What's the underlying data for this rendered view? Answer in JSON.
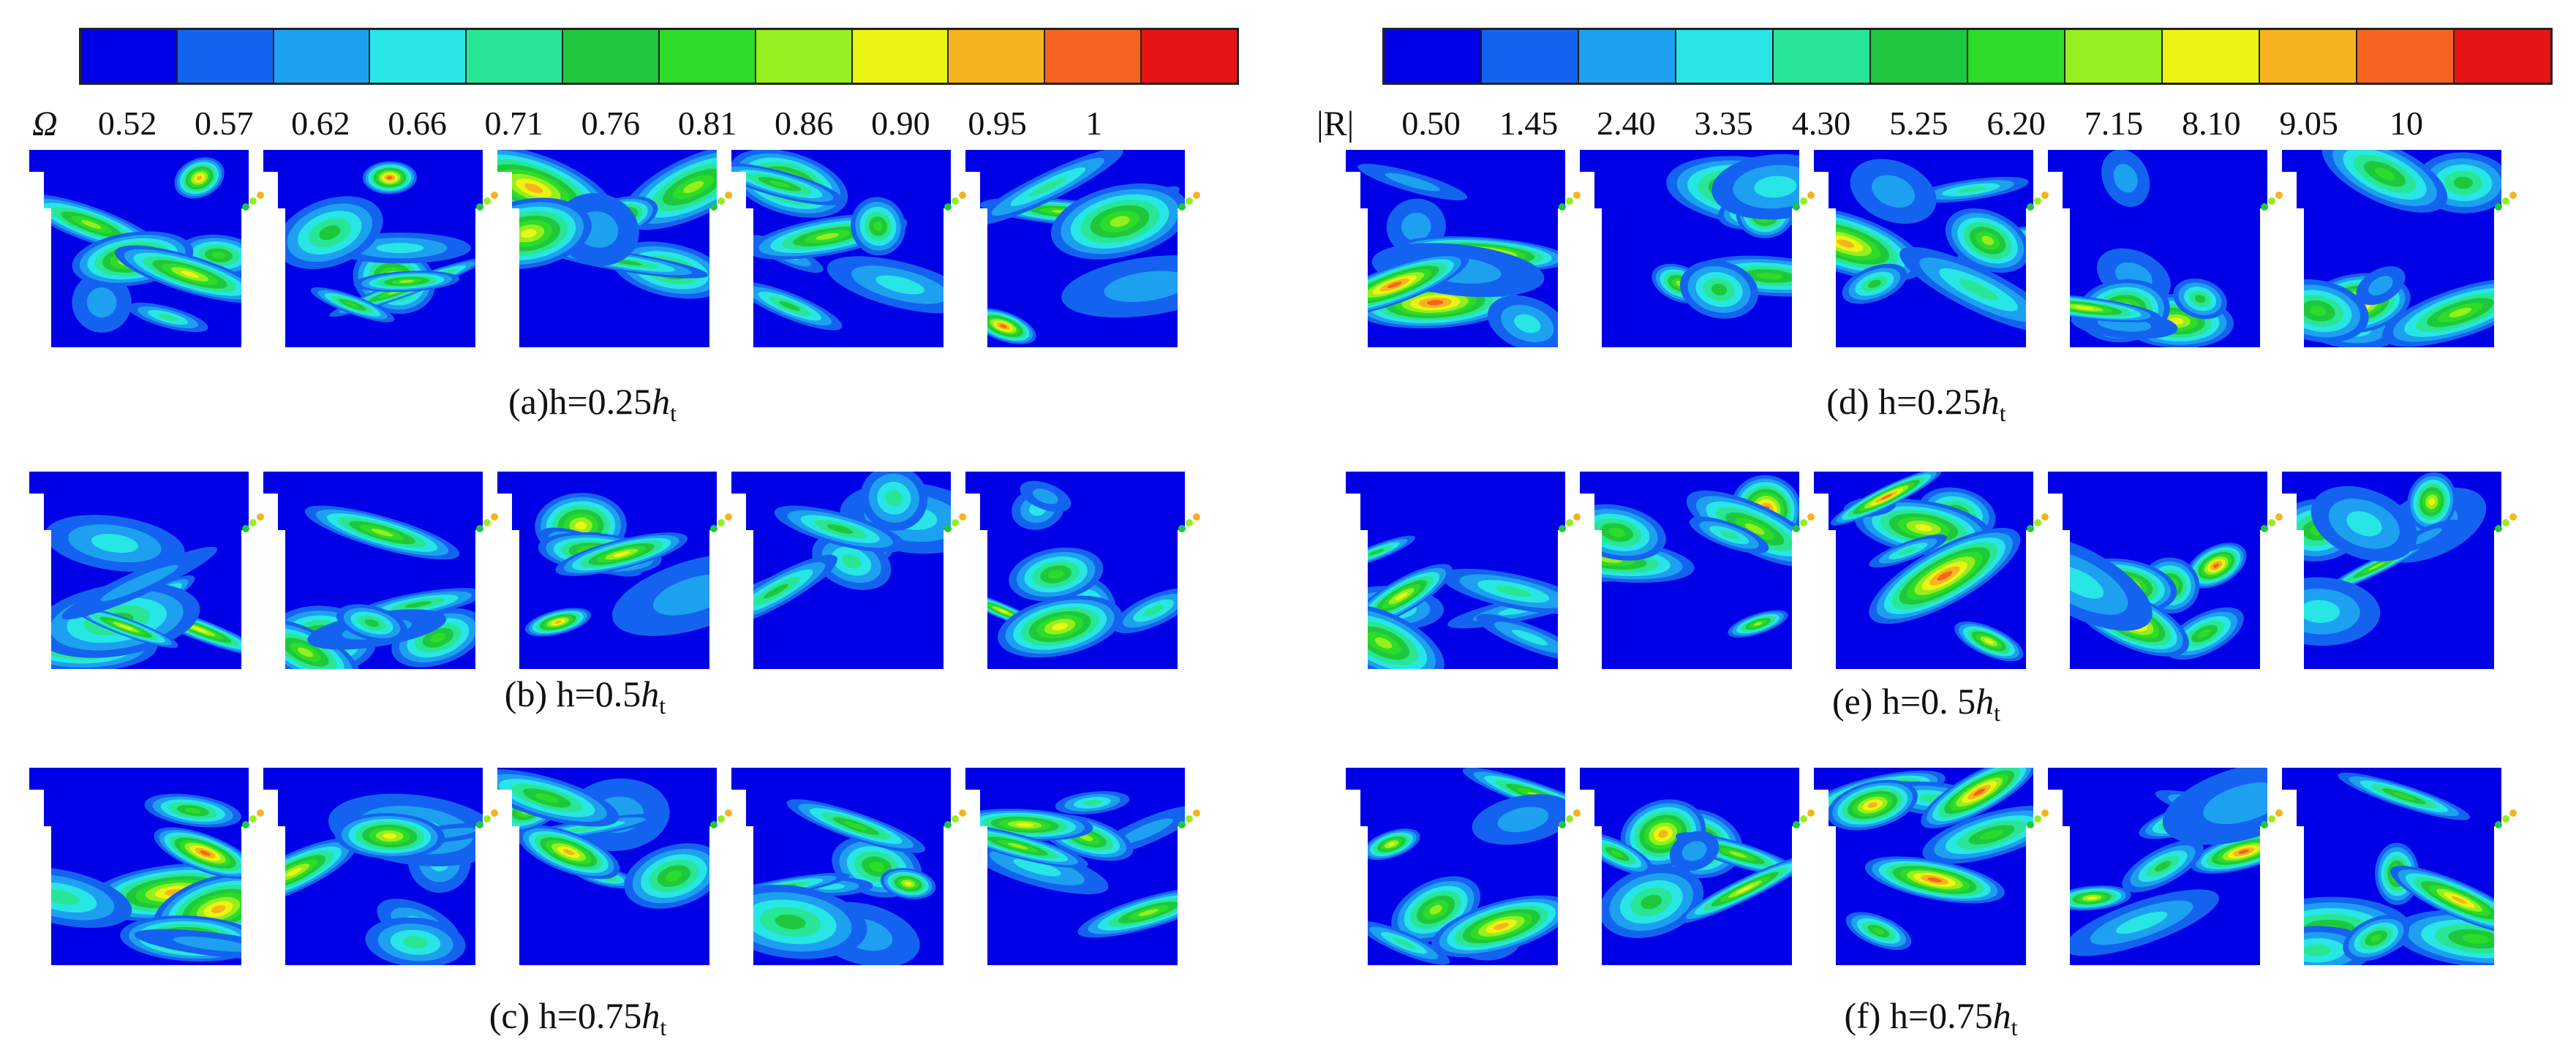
{
  "colormap": [
    "#0000e6",
    "#1463f0",
    "#1ea0f0",
    "#28e6e6",
    "#28e696",
    "#1ec83c",
    "#2ddc28",
    "#96ee1e",
    "#ebf514",
    "#f5b41e",
    "#f5641e",
    "#e61414"
  ],
  "legend_left": {
    "symbol": "Ω",
    "ticks": [
      "0.52",
      "0.57",
      "0.62",
      "0.66",
      "0.71",
      "0.76",
      "0.81",
      "0.86",
      "0.90",
      "0.95",
      "1"
    ]
  },
  "legend_right": {
    "symbol": "|R|",
    "ticks": [
      "0.50",
      "1.45",
      "2.40",
      "3.35",
      "4.30",
      "5.25",
      "6.20",
      "7.15",
      "8.10",
      "9.05",
      "10"
    ]
  },
  "captions": {
    "a": {
      "prefix": "(a)h=0.25",
      "var": "h",
      "sub": "t"
    },
    "b": {
      "prefix": "(b) h=0.5",
      "var": "h",
      "sub": "t"
    },
    "c": {
      "prefix": "(c) h=0.75",
      "var": "h",
      "sub": "t"
    },
    "d": {
      "prefix": "(d) h=0.25",
      "var": "h",
      "sub": "t"
    },
    "e": {
      "prefix": "(e) h=0. 5",
      "var": "h",
      "sub": "t"
    },
    "f": {
      "prefix": "(f) h=0.75",
      "var": "h",
      "sub": "t"
    }
  }
}
